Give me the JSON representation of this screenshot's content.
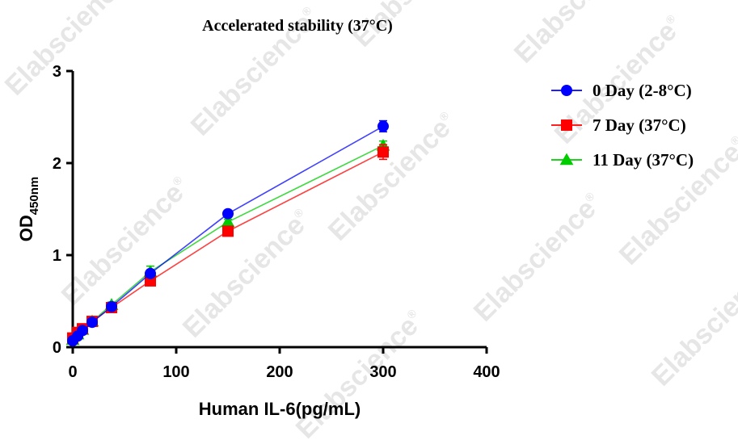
{
  "chart_data": {
    "type": "line",
    "title": "Accelerated stability (37°C)",
    "xlabel": "Human IL-6(pg/mL)",
    "ylabel_main": "OD",
    "ylabel_sub": "450nm",
    "xlim": [
      0,
      400
    ],
    "ylim": [
      0,
      3
    ],
    "xticks": [
      0,
      100,
      200,
      300,
      400
    ],
    "yticks": [
      0,
      1,
      2,
      3
    ],
    "grid": false,
    "legend_position": "right",
    "x": [
      0,
      4.69,
      9.38,
      18.75,
      37.5,
      75,
      150,
      300
    ],
    "series": [
      {
        "name": "0 Day (2-8°C)",
        "color": "#0000ff",
        "marker": "circle",
        "values": [
          0.07,
          0.12,
          0.18,
          0.27,
          0.44,
          0.8,
          1.45,
          2.4
        ],
        "errors": [
          0.01,
          0.01,
          0.02,
          0.02,
          0.03,
          0.04,
          0.03,
          0.06
        ]
      },
      {
        "name": "7 Day (37°C)",
        "color": "#ff0000",
        "marker": "square",
        "values": [
          0.1,
          0.16,
          0.2,
          0.28,
          0.43,
          0.72,
          1.26,
          2.12
        ],
        "errors": [
          0.01,
          0.01,
          0.02,
          0.02,
          0.02,
          0.03,
          0.03,
          0.08
        ]
      },
      {
        "name": "11 Day (37°C)",
        "color": "#00cc00",
        "marker": "triangle",
        "values": [
          0.08,
          0.14,
          0.19,
          0.28,
          0.46,
          0.82,
          1.36,
          2.19
        ],
        "errors": [
          0.01,
          0.01,
          0.02,
          0.02,
          0.03,
          0.06,
          0.03,
          0.05
        ]
      }
    ]
  },
  "watermark": {
    "text": "Elabscience",
    "mark": "®"
  }
}
